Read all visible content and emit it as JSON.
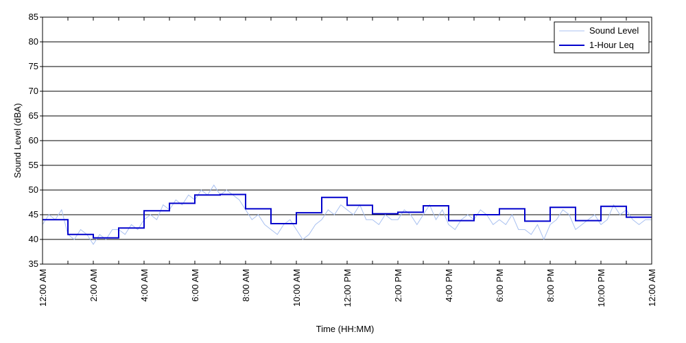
{
  "chart_data": {
    "type": "line",
    "title": "",
    "xlabel": "Time (HH:MM)",
    "ylabel": "Sound Level (dBA)",
    "x_range_hours": [
      0,
      24
    ],
    "ylim": [
      35,
      85
    ],
    "y_ticks": [
      35,
      40,
      45,
      50,
      55,
      60,
      65,
      70,
      75,
      80,
      85
    ],
    "x_ticks": [
      {
        "hour": 0,
        "label": "12:00 AM"
      },
      {
        "hour": 2,
        "label": "2:00 AM"
      },
      {
        "hour": 4,
        "label": "4:00 AM"
      },
      {
        "hour": 6,
        "label": "6:00 AM"
      },
      {
        "hour": 8,
        "label": "8:00 AM"
      },
      {
        "hour": 10,
        "label": "10:00 AM"
      },
      {
        "hour": 12,
        "label": "12:00 PM"
      },
      {
        "hour": 14,
        "label": "2:00 PM"
      },
      {
        "hour": 16,
        "label": "4:00 PM"
      },
      {
        "hour": 18,
        "label": "6:00 PM"
      },
      {
        "hour": 20,
        "label": "8:00 PM"
      },
      {
        "hour": 22,
        "label": "10:00 PM"
      },
      {
        "hour": 24,
        "label": "12:00 AM"
      }
    ],
    "grid": "horizontal",
    "legend_position": "top-right",
    "series": [
      {
        "name": "Sound Level",
        "color": "#a8c0f0",
        "description_type": "fluctuating",
        "x": [
          0,
          0.25,
          0.5,
          0.75,
          1,
          1.25,
          1.5,
          1.75,
          2,
          2.25,
          2.5,
          2.75,
          3,
          3.25,
          3.5,
          3.75,
          4,
          4.25,
          4.5,
          4.75,
          5,
          5.25,
          5.5,
          5.75,
          6,
          6.25,
          6.5,
          6.75,
          7,
          7.25,
          7.5,
          7.75,
          8,
          8.25,
          8.5,
          8.75,
          9,
          9.25,
          9.5,
          9.75,
          10,
          10.25,
          10.5,
          10.75,
          11,
          11.25,
          11.5,
          11.75,
          12,
          12.25,
          12.5,
          12.75,
          13,
          13.25,
          13.5,
          13.75,
          14,
          14.25,
          14.5,
          14.75,
          15,
          15.25,
          15.5,
          15.75,
          16,
          16.25,
          16.5,
          16.75,
          17,
          17.25,
          17.5,
          17.75,
          18,
          18.25,
          18.5,
          18.75,
          19,
          19.25,
          19.5,
          19.75,
          20,
          20.25,
          20.5,
          20.75,
          21,
          21.25,
          21.5,
          21.75,
          22,
          22.25,
          22.5,
          22.75,
          23,
          23.25,
          23.5,
          23.75,
          24
        ],
        "values": [
          43,
          45,
          44,
          46,
          41,
          40,
          42,
          41,
          39,
          41,
          40,
          42,
          42,
          41,
          43,
          42,
          44,
          45,
          44,
          47,
          46,
          48,
          47,
          49,
          48,
          50,
          49,
          51,
          49,
          50,
          49,
          48,
          46,
          44,
          45,
          43,
          42,
          41,
          43,
          44,
          42,
          40,
          41,
          43,
          44,
          46,
          45,
          47,
          46,
          45,
          47,
          44,
          44,
          43,
          45,
          44,
          44,
          46,
          45,
          43,
          45,
          47,
          44,
          46,
          43,
          42,
          44,
          45,
          44,
          46,
          45,
          43,
          44,
          43,
          45,
          42,
          42,
          41,
          43,
          40,
          43,
          44,
          46,
          45,
          42,
          43,
          44,
          45,
          43,
          44,
          47,
          45,
          46,
          44,
          43,
          44,
          44
        ]
      },
      {
        "name": "1-Hour Leq",
        "color": "#0000cc",
        "hourly_values": [
          44,
          41,
          40.3,
          42.3,
          45.8,
          47.3,
          49,
          49.1,
          46.2,
          43.2,
          45.4,
          48.5,
          46.9,
          45.2,
          45.5,
          46.8,
          43.8,
          45,
          46.2,
          43.7,
          46.5,
          43.8,
          46.7,
          44.5
        ]
      }
    ]
  }
}
